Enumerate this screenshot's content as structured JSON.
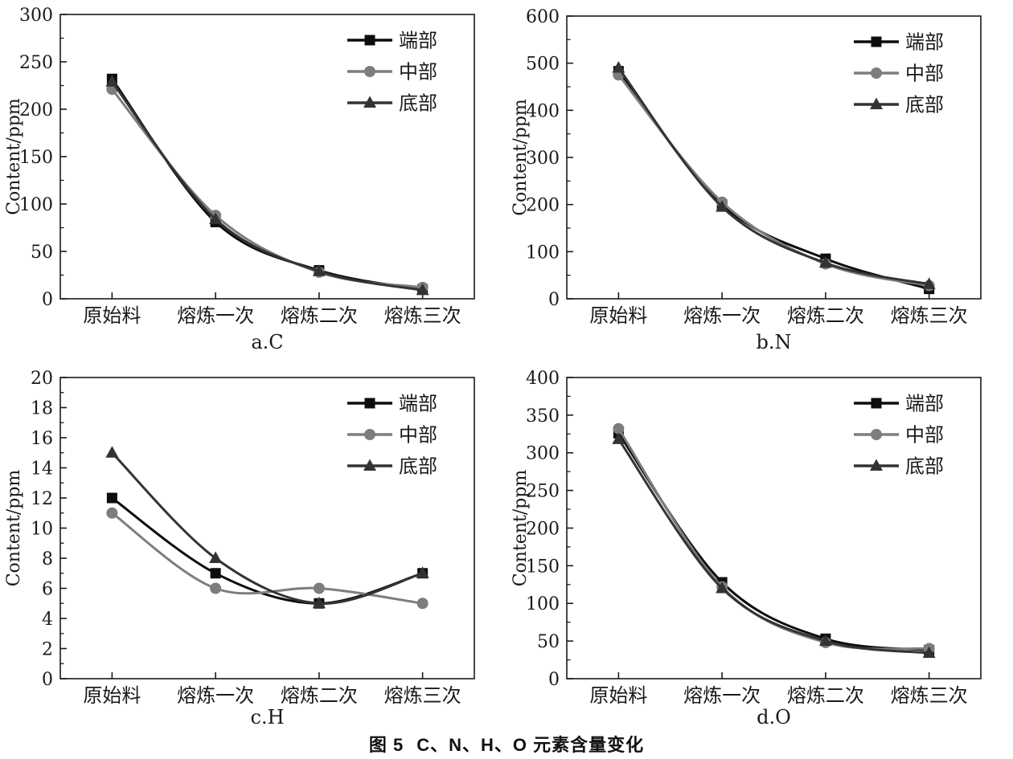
{
  "figure": {
    "caption_prefix": "图 5",
    "caption_text": "C、N、H、O 元素含量变化"
  },
  "legend": {
    "position": "top-right",
    "items": [
      {
        "label": "端部",
        "marker": "square",
        "color": "#0d0d0d"
      },
      {
        "label": "中部",
        "marker": "circle",
        "color": "#7d7d7d"
      },
      {
        "label": "底部",
        "marker": "triangle",
        "color": "#333333"
      }
    ]
  },
  "chart_data": [
    {
      "type": "line",
      "subtitle": "a.C",
      "ylabel": "Content/ppm",
      "xlabel": "",
      "categories": [
        "原始料",
        "熔炼一次",
        "熔炼二次",
        "熔炼三次"
      ],
      "ylim": [
        0,
        300
      ],
      "ytick_step": 50,
      "grid": false,
      "legend_position": "top-right",
      "series": [
        {
          "name": "端部",
          "marker": "square",
          "color": "#0d0d0d",
          "values": [
            232,
            81,
            30,
            10
          ]
        },
        {
          "name": "中部",
          "marker": "circle",
          "color": "#7d7d7d",
          "values": [
            221,
            88,
            28,
            12
          ]
        },
        {
          "name": "底部",
          "marker": "triangle",
          "color": "#333333",
          "values": [
            229,
            84,
            29,
            9
          ]
        }
      ]
    },
    {
      "type": "line",
      "subtitle": "b.N",
      "ylabel": "Content/ppm",
      "xlabel": "",
      "categories": [
        "原始料",
        "熔炼一次",
        "熔炼二次",
        "熔炼三次"
      ],
      "ylim": [
        0,
        600
      ],
      "ytick_step": 100,
      "grid": false,
      "legend_position": "top-right",
      "series": [
        {
          "name": "端部",
          "marker": "square",
          "color": "#0d0d0d",
          "values": [
            483,
            200,
            85,
            21
          ]
        },
        {
          "name": "中部",
          "marker": "circle",
          "color": "#7d7d7d",
          "values": [
            475,
            205,
            74,
            28
          ]
        },
        {
          "name": "底部",
          "marker": "triangle",
          "color": "#333333",
          "values": [
            490,
            195,
            76,
            31
          ]
        }
      ]
    },
    {
      "type": "line",
      "subtitle": "c.H",
      "ylabel": "Content/ppm",
      "xlabel": "",
      "categories": [
        "原始料",
        "熔炼一次",
        "熔炼二次",
        "熔炼三次"
      ],
      "ylim": [
        0,
        20
      ],
      "ytick_step": 2,
      "grid": false,
      "legend_position": "top-right",
      "series": [
        {
          "name": "端部",
          "marker": "square",
          "color": "#0d0d0d",
          "values": [
            12,
            7,
            5,
            7
          ]
        },
        {
          "name": "中部",
          "marker": "circle",
          "color": "#7d7d7d",
          "values": [
            11,
            6,
            6,
            5
          ]
        },
        {
          "name": "底部",
          "marker": "triangle",
          "color": "#333333",
          "values": [
            15,
            8,
            5,
            7
          ]
        }
      ]
    },
    {
      "type": "line",
      "subtitle": "d.O",
      "ylabel": "Content/ppm",
      "xlabel": "",
      "categories": [
        "原始料",
        "熔炼一次",
        "熔炼二次",
        "熔炼三次"
      ],
      "ylim": [
        0,
        400
      ],
      "ytick_step": 50,
      "grid": false,
      "legend_position": "top-right",
      "series": [
        {
          "name": "端部",
          "marker": "square",
          "color": "#0d0d0d",
          "values": [
            326,
            128,
            53,
            38
          ]
        },
        {
          "name": "中部",
          "marker": "circle",
          "color": "#7d7d7d",
          "values": [
            332,
            122,
            48,
            40
          ]
        },
        {
          "name": "底部",
          "marker": "triangle",
          "color": "#333333",
          "values": [
            318,
            120,
            50,
            34
          ]
        }
      ]
    }
  ]
}
